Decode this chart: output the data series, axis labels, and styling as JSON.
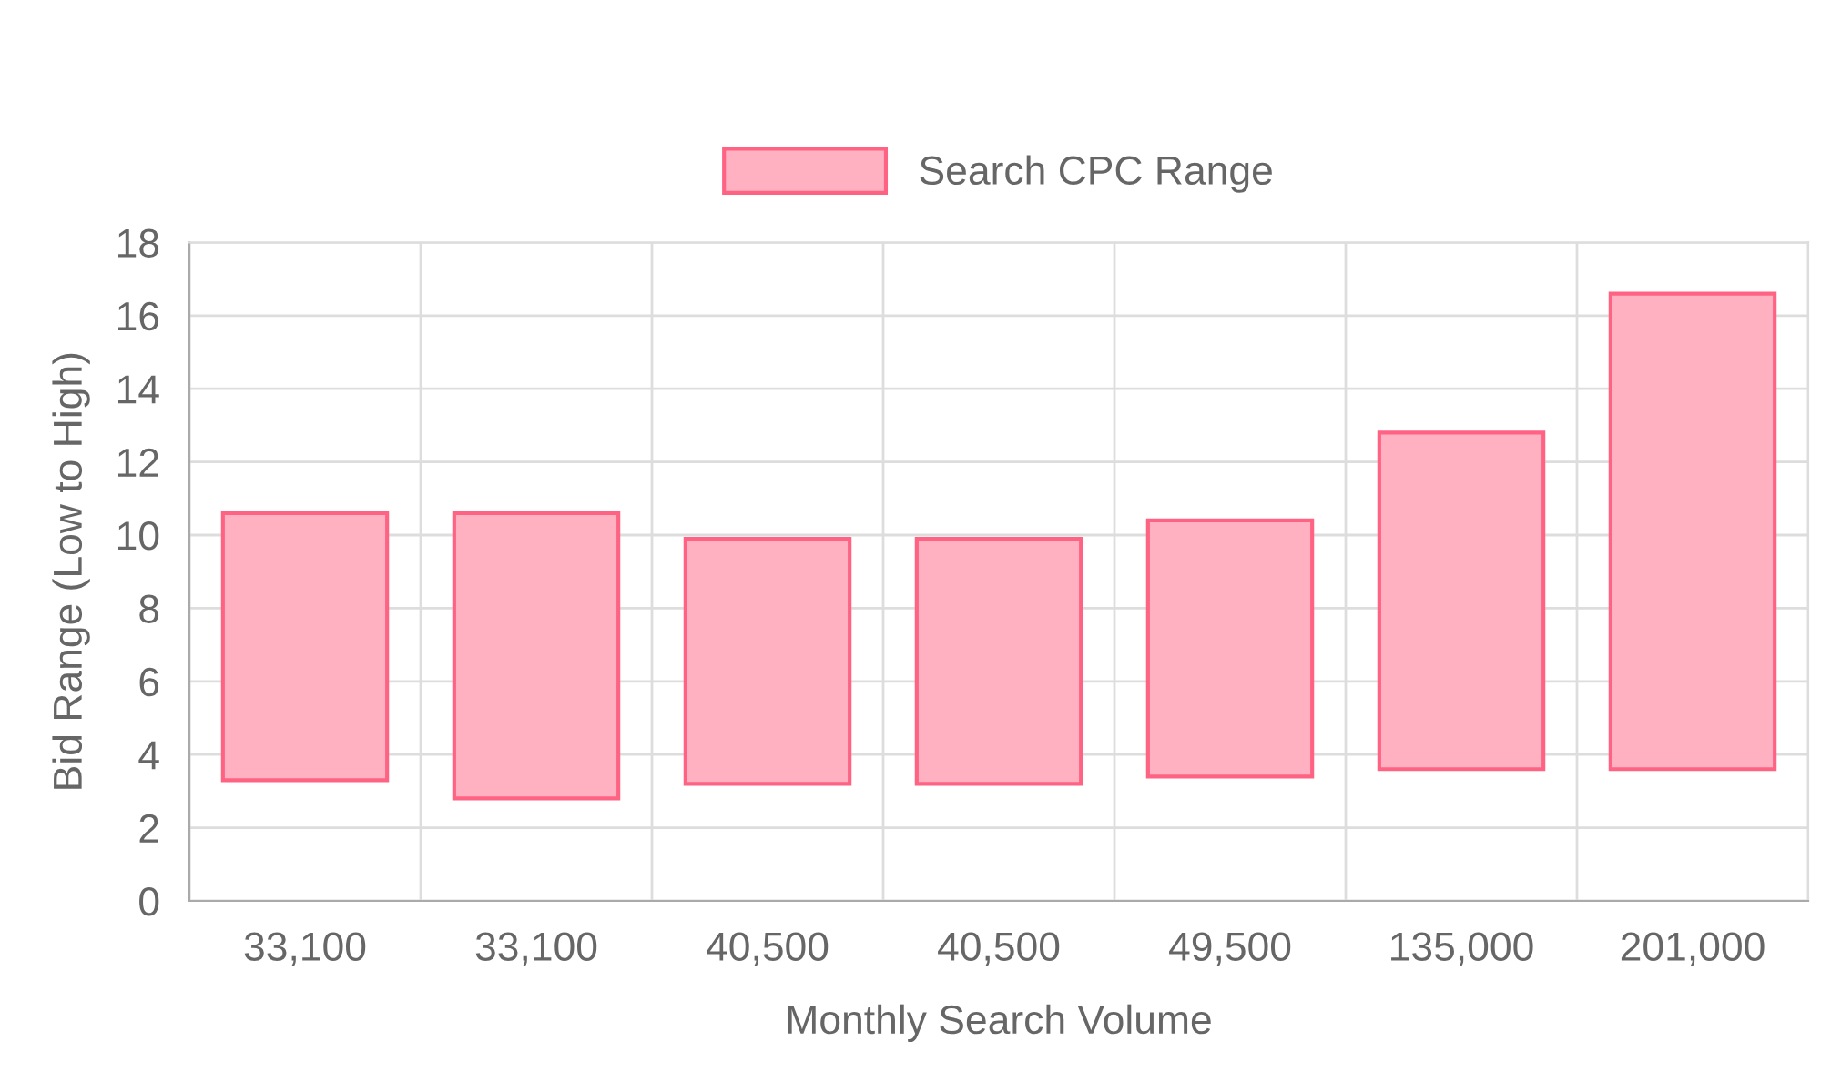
{
  "chart_data": {
    "type": "bar",
    "xlabel": "Monthly Search Volume",
    "ylabel": "Bid Range (Low to High)",
    "categories": [
      "33,100",
      "33,100",
      "40,500",
      "40,500",
      "49,500",
      "135,000",
      "201,000"
    ],
    "series": [
      {
        "name": "Search CPC Range",
        "color": "#ffb1c1",
        "values": [
          7.3,
          7.8,
          6.7,
          6.7,
          7.0,
          9.2,
          13.0
        ],
        "base": [
          3.3,
          2.8,
          3.2,
          3.2,
          3.4,
          3.6,
          3.6
        ]
      }
    ],
    "ylim": [
      0,
      18
    ],
    "yticks": [
      0,
      2,
      4,
      6,
      8,
      10,
      12,
      14,
      16,
      18
    ],
    "grid": true,
    "legend": "top"
  }
}
